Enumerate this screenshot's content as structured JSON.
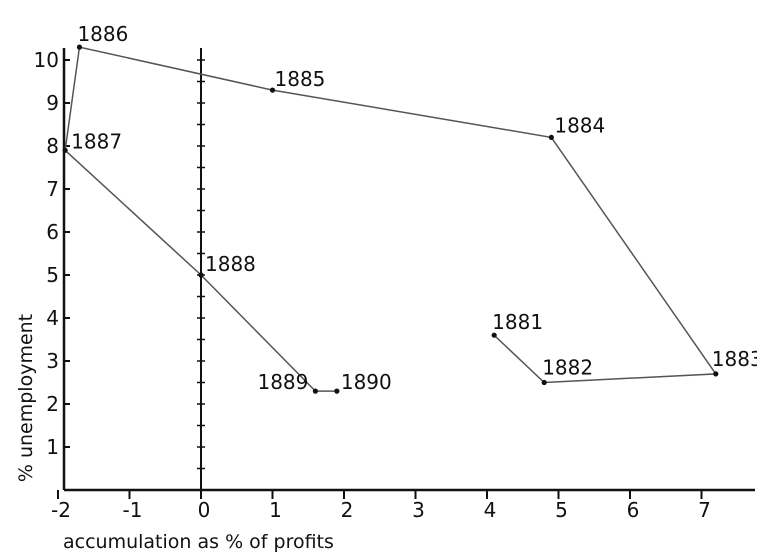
{
  "chart_data": {
    "type": "line",
    "xlabel": "accumulation as % of profits",
    "ylabel": "% unemployment",
    "xlim": [
      -2,
      7.8
    ],
    "ylim": [
      0,
      10.3
    ],
    "x_ticks": [
      -2,
      -1,
      0,
      1,
      2,
      3,
      4,
      5,
      6,
      7
    ],
    "y_ticks": [
      1,
      2,
      3,
      4,
      5,
      6,
      7,
      8,
      9,
      10
    ],
    "grid": false,
    "series": [
      {
        "points": [
          {
            "year": "1881",
            "x": 4.1,
            "y": 3.6
          },
          {
            "year": "1882",
            "x": 4.8,
            "y": 2.5
          },
          {
            "year": "1883",
            "x": 7.2,
            "y": 2.7
          },
          {
            "year": "1884",
            "x": 4.9,
            "y": 8.2
          },
          {
            "year": "1885",
            "x": 1.0,
            "y": 9.3
          },
          {
            "year": "1886",
            "x": -1.7,
            "y": 10.3
          },
          {
            "year": "1887",
            "x": -1.9,
            "y": 7.9
          },
          {
            "year": "1888",
            "x": 0.0,
            "y": 5.0
          },
          {
            "year": "1889",
            "x": 1.6,
            "y": 2.3
          },
          {
            "year": "1890",
            "x": 1.9,
            "y": 2.3
          }
        ]
      }
    ],
    "annotations": [
      "1881",
      "1882",
      "1883",
      "1884",
      "1885",
      "1886",
      "1887",
      "1888",
      "1889",
      "1890"
    ]
  }
}
